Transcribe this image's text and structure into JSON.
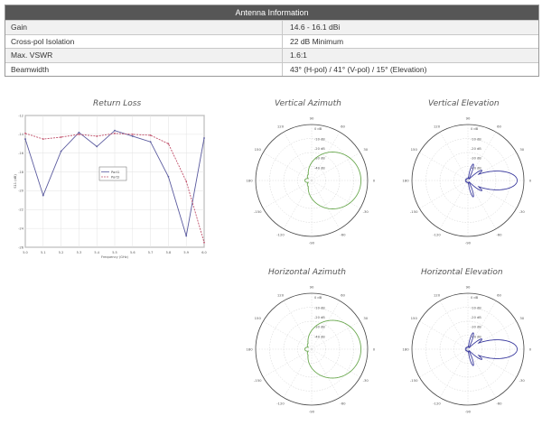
{
  "table": {
    "title": "Antenna Information",
    "rows": [
      {
        "label": "Gain",
        "value": "14.6 - 16.1 dBi"
      },
      {
        "label": "Cross-pol Isolation",
        "value": "22 dB Minimum"
      },
      {
        "label": "Max. VSWR",
        "value": "1.6:1"
      },
      {
        "label": "Beamwidth",
        "value": "43° (H-pol) / 41° (V-pol) / 15° (Elevation)"
      }
    ]
  },
  "charts": {
    "return_loss": {
      "title": "Return Loss"
    },
    "vertical_azimuth": {
      "title": "Vertical Azimuth"
    },
    "vertical_elevation": {
      "title": "Vertical Elevation"
    },
    "horizontal_azimuth": {
      "title": "Horizontal Azimuth"
    },
    "horizontal_elevation": {
      "title": "Horizontal Elevation"
    }
  },
  "colors": {
    "header_bg": "#565656",
    "azimuth_trace": "#6aa84f",
    "elevation_trace": "#3b3b9e",
    "rl_port1": "#5a5a9e",
    "rl_port2": "#c0506a"
  },
  "chart_data": [
    {
      "type": "line",
      "title": "Return Loss",
      "xlabel": "Frequency (GHz)",
      "ylabel": "S11 (dB)",
      "x": [
        5.0,
        5.1,
        5.2,
        5.3,
        5.4,
        5.5,
        5.6,
        5.7,
        5.8,
        5.9,
        6.0
      ],
      "xticks": [
        "5.0",
        "5.1",
        "5.2",
        "5.3",
        "5.4",
        "5.5",
        "5.6",
        "5.7",
        "5.8",
        "5.9",
        "6.0"
      ],
      "ylim": [
        -26,
        -12
      ],
      "series": [
        {
          "name": "Port1",
          "values": [
            -14.5,
            -20.5,
            -15.8,
            -13.8,
            -15.3,
            -13.6,
            -14.2,
            -14.8,
            -18.5,
            -24.8,
            -14.4
          ]
        },
        {
          "name": "Port2",
          "values": [
            -13.9,
            -14.5,
            -14.3,
            -14.0,
            -14.2,
            -13.9,
            -14.0,
            -14.1,
            -15.0,
            -19.0,
            -25.5
          ]
        }
      ],
      "legend": "center"
    },
    {
      "type": "polar",
      "title": "Vertical Azimuth",
      "pattern": "azimuth",
      "beamwidth_deg": 41
    },
    {
      "type": "polar",
      "title": "Vertical Elevation",
      "pattern": "elevation",
      "beamwidth_deg": 15
    },
    {
      "type": "polar",
      "title": "Horizontal Azimuth",
      "pattern": "azimuth",
      "beamwidth_deg": 43
    },
    {
      "type": "polar",
      "title": "Horizontal Elevation",
      "pattern": "elevation",
      "beamwidth_deg": 15
    }
  ]
}
